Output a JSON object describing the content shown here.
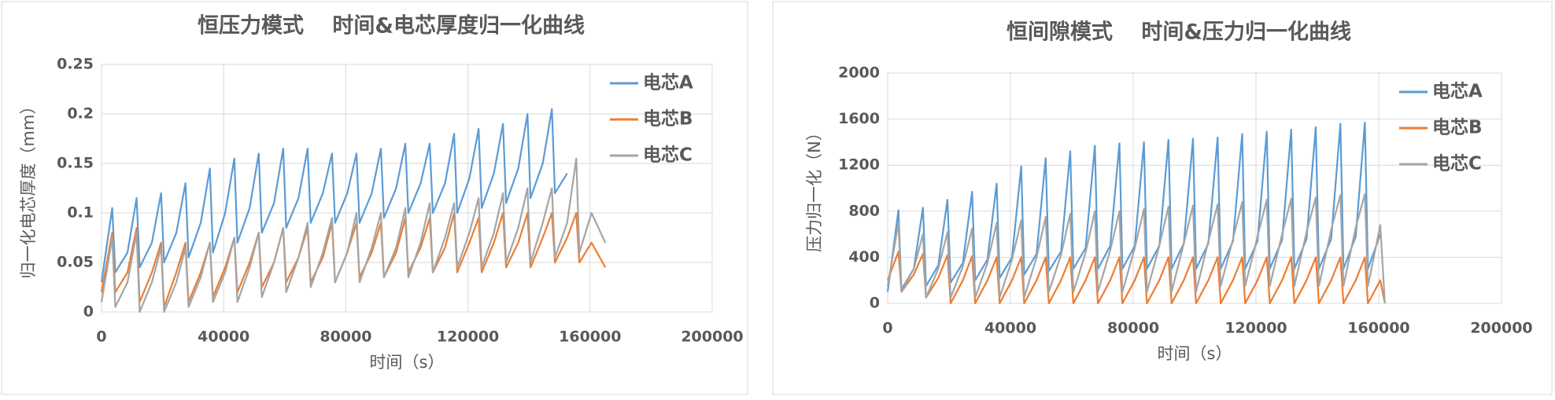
{
  "chart_data": [
    {
      "type": "line",
      "title": "恒压力模式　 时间&电芯厚度归一化曲线",
      "x_label": "时间（s）",
      "y_label": "归一化电芯厚度（mm）",
      "xlim": [
        0,
        200000
      ],
      "xticks": [
        0,
        40000,
        80000,
        120000,
        160000,
        200000
      ],
      "ylim": [
        0,
        0.25
      ],
      "yticks": [
        0,
        0.05,
        0.1,
        0.15,
        0.2,
        0.25
      ],
      "grid": true,
      "legend": "right",
      "x": [
        0,
        3500,
        4500,
        8500,
        11500,
        12500,
        16500,
        19500,
        20500,
        24500,
        27500,
        28500,
        32500,
        35500,
        36500,
        40500,
        43500,
        44500,
        48500,
        51500,
        52500,
        56500,
        59500,
        60500,
        64500,
        67500,
        68500,
        72500,
        75500,
        76500,
        80500,
        83500,
        84500,
        88500,
        91500,
        92500,
        96500,
        99500,
        100500,
        104500,
        107500,
        108500,
        112500,
        115500,
        116500,
        120500,
        123500,
        124500,
        128500,
        131500,
        132500,
        136500,
        139500,
        140500,
        144500,
        147500,
        148500,
        152500,
        155500,
        156500,
        160500,
        165000
      ],
      "series": [
        {
          "name": "电芯A",
          "color": "#5b9bd5",
          "values": [
            0.03,
            0.105,
            0.04,
            0.06,
            0.115,
            0.045,
            0.07,
            0.12,
            0.05,
            0.08,
            0.13,
            0.055,
            0.09,
            0.145,
            0.06,
            0.1,
            0.155,
            0.07,
            0.105,
            0.16,
            0.08,
            0.11,
            0.165,
            0.085,
            0.115,
            0.165,
            0.09,
            0.12,
            0.16,
            0.09,
            0.12,
            0.16,
            0.09,
            0.12,
            0.165,
            0.095,
            0.125,
            0.17,
            0.1,
            0.13,
            0.17,
            0.1,
            0.13,
            0.18,
            0.1,
            0.135,
            0.185,
            0.105,
            0.14,
            0.19,
            0.11,
            0.145,
            0.2,
            0.115,
            0.15,
            0.205,
            0.12,
            0.14,
            null,
            null,
            null,
            null
          ]
        },
        {
          "name": "电芯B",
          "color": "#ed7d31",
          "values": [
            0.02,
            0.08,
            0.02,
            0.04,
            0.085,
            0.01,
            0.04,
            0.07,
            0.005,
            0.04,
            0.07,
            0.01,
            0.04,
            0.07,
            0.015,
            0.045,
            0.075,
            0.02,
            0.05,
            0.08,
            0.025,
            0.05,
            0.085,
            0.03,
            0.055,
            0.085,
            0.03,
            0.055,
            0.09,
            0.03,
            0.06,
            0.09,
            0.035,
            0.06,
            0.09,
            0.035,
            0.06,
            0.095,
            0.04,
            0.065,
            0.095,
            0.04,
            0.065,
            0.1,
            0.04,
            0.07,
            0.095,
            0.04,
            0.07,
            0.1,
            0.045,
            0.07,
            0.1,
            0.045,
            0.075,
            0.1,
            0.05,
            0.075,
            0.1,
            0.05,
            0.07,
            0.045
          ]
        },
        {
          "name": "电芯C",
          "color": "#a5a5a5",
          "values": [
            0.01,
            0.075,
            0.005,
            0.03,
            0.08,
            0,
            0.03,
            0.065,
            0,
            0.03,
            0.065,
            0.005,
            0.035,
            0.07,
            0.01,
            0.04,
            0.075,
            0.01,
            0.045,
            0.08,
            0.015,
            0.05,
            0.085,
            0.02,
            0.055,
            0.09,
            0.025,
            0.06,
            0.095,
            0.03,
            0.06,
            0.1,
            0.03,
            0.065,
            0.1,
            0.035,
            0.065,
            0.105,
            0.035,
            0.07,
            0.11,
            0.04,
            0.075,
            0.11,
            0.045,
            0.08,
            0.115,
            0.045,
            0.08,
            0.12,
            0.05,
            0.085,
            0.125,
            0.05,
            0.09,
            0.125,
            0.055,
            0.09,
            0.155,
            0.06,
            0.1,
            0.07
          ]
        }
      ]
    },
    {
      "type": "line",
      "title": "恒间隙模式　 时间&压力归一化曲线",
      "x_label": "时间（s）",
      "y_label": "压力归一化（N）",
      "xlim": [
        0,
        200000
      ],
      "xticks": [
        0,
        40000,
        80000,
        120000,
        160000,
        200000
      ],
      "ylim": [
        0,
        2000
      ],
      "yticks": [
        0,
        400,
        800,
        1200,
        1600,
        2000
      ],
      "grid": true,
      "legend": "right",
      "x": [
        0,
        3500,
        4500,
        8500,
        11500,
        12500,
        16500,
        19500,
        20500,
        24500,
        27500,
        28500,
        32500,
        35500,
        36500,
        40500,
        43500,
        44500,
        48500,
        51500,
        52500,
        56500,
        59500,
        60500,
        64500,
        67500,
        68500,
        72500,
        75500,
        76500,
        80500,
        83500,
        84500,
        88500,
        91500,
        92500,
        96500,
        99500,
        100500,
        104500,
        107500,
        108500,
        112500,
        115500,
        116500,
        120500,
        123500,
        124500,
        128500,
        131500,
        132500,
        136500,
        139500,
        140500,
        144500,
        147500,
        148500,
        152500,
        155500,
        156500,
        160500,
        162000
      ],
      "series": [
        {
          "name": "电芯A",
          "color": "#5b9bd5",
          "values": [
            100,
            810,
            120,
            300,
            830,
            150,
            330,
            900,
            180,
            350,
            970,
            200,
            380,
            1040,
            220,
            400,
            1190,
            250,
            430,
            1260,
            280,
            450,
            1320,
            300,
            480,
            1370,
            300,
            500,
            1390,
            300,
            500,
            1400,
            300,
            500,
            1420,
            300,
            520,
            1430,
            300,
            520,
            1440,
            300,
            540,
            1470,
            300,
            540,
            1490,
            300,
            550,
            1510,
            300,
            560,
            1530,
            300,
            560,
            1560,
            300,
            580,
            1570,
            300,
            600,
            null
          ]
        },
        {
          "name": "电芯B",
          "color": "#ed7d31",
          "values": [
            200,
            450,
            100,
            250,
            430,
            50,
            220,
            420,
            0,
            200,
            410,
            0,
            200,
            400,
            0,
            200,
            400,
            0,
            200,
            400,
            0,
            200,
            400,
            0,
            200,
            400,
            0,
            200,
            400,
            0,
            200,
            400,
            0,
            200,
            400,
            0,
            200,
            400,
            0,
            200,
            400,
            0,
            200,
            400,
            0,
            200,
            400,
            0,
            200,
            400,
            0,
            200,
            400,
            0,
            200,
            400,
            0,
            200,
            400,
            0,
            200,
            0
          ]
        },
        {
          "name": "电芯C",
          "color": "#a5a5a5",
          "values": [
            150,
            700,
            100,
            300,
            600,
            50,
            300,
            620,
            50,
            320,
            650,
            50,
            350,
            700,
            50,
            380,
            720,
            50,
            400,
            750,
            100,
            420,
            780,
            100,
            440,
            800,
            100,
            460,
            800,
            100,
            480,
            820,
            100,
            500,
            840,
            100,
            520,
            850,
            100,
            540,
            860,
            150,
            560,
            880,
            150,
            580,
            900,
            150,
            600,
            910,
            150,
            620,
            920,
            150,
            640,
            940,
            150,
            660,
            950,
            150,
            680,
            0
          ]
        }
      ]
    }
  ]
}
